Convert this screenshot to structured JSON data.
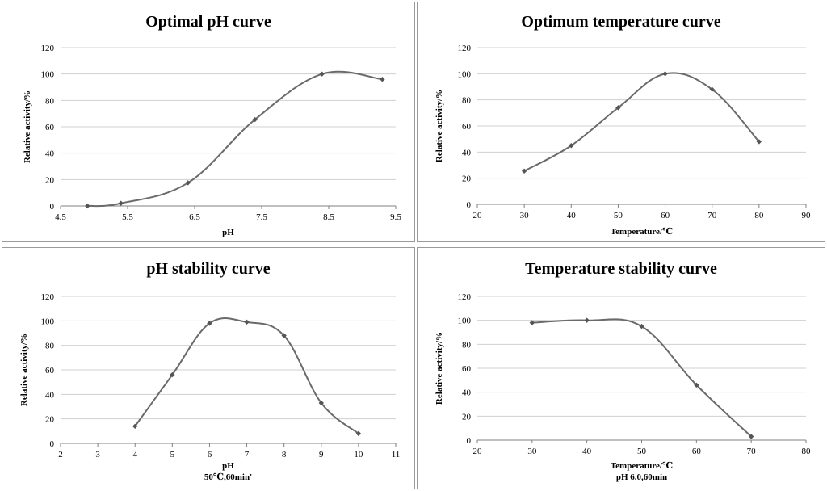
{
  "chart_data": [
    {
      "type": "line",
      "title": "Optimal pH curve",
      "xlabel": "pH",
      "ylabel": "Relative activity/%",
      "xlim": [
        4.5,
        9.5
      ],
      "ylim": [
        0,
        120
      ],
      "xticks": [
        "4.5",
        "5.5",
        "6.5",
        "7.5",
        "8.5",
        "9.5"
      ],
      "xtick_values": [
        4.5,
        5.5,
        6.5,
        7.5,
        8.5,
        9.5
      ],
      "yticks": [
        "0",
        "20",
        "40",
        "60",
        "80",
        "100",
        "120"
      ],
      "ytick_values": [
        0,
        20,
        40,
        60,
        80,
        100,
        120
      ],
      "x": [
        4.9,
        5.4,
        6.4,
        7.4,
        8.4,
        9.3
      ],
      "y": [
        0,
        2,
        17.5,
        65.5,
        100,
        96
      ],
      "grid": true
    },
    {
      "type": "line",
      "title": "Optimum temperature curve",
      "xlabel": "Temperature/℃",
      "ylabel": "Relative activity/%",
      "xlim": [
        20,
        90
      ],
      "ylim": [
        0,
        120
      ],
      "xticks": [
        "20",
        "30",
        "40",
        "50",
        "60",
        "70",
        "80",
        "90"
      ],
      "xtick_values": [
        20,
        30,
        40,
        50,
        60,
        70,
        80,
        90
      ],
      "yticks": [
        "0",
        "20",
        "40",
        "60",
        "80",
        "100",
        "120"
      ],
      "ytick_values": [
        0,
        20,
        40,
        60,
        80,
        100,
        120
      ],
      "x": [
        30,
        40,
        50,
        60,
        70,
        80
      ],
      "y": [
        25.5,
        45,
        74,
        100,
        88,
        48
      ],
      "grid": true
    },
    {
      "type": "line",
      "title": "pH stability curve",
      "xlabel": "pH",
      "xlabel2": "50℃,60min'",
      "ylabel": "Relative activity/%",
      "xlim": [
        2,
        11
      ],
      "ylim": [
        0,
        120
      ],
      "xticks": [
        "2",
        "3",
        "4",
        "5",
        "6",
        "7",
        "8",
        "9",
        "10",
        "11"
      ],
      "xtick_values": [
        2,
        3,
        4,
        5,
        6,
        7,
        8,
        9,
        10,
        11
      ],
      "yticks": [
        "0",
        "20",
        "40",
        "60",
        "80",
        "100",
        "120"
      ],
      "ytick_values": [
        0,
        20,
        40,
        60,
        80,
        100,
        120
      ],
      "x": [
        4,
        5,
        6,
        7,
        8,
        9,
        10
      ],
      "y": [
        14,
        56,
        98,
        99,
        88,
        33,
        8
      ],
      "grid": true
    },
    {
      "type": "line",
      "title": "Temperature stability curve",
      "xlabel": "Temperature/℃",
      "xlabel2": "pH 6.0,60min",
      "ylabel": "Relative activity/%",
      "xlim": [
        20,
        80
      ],
      "ylim": [
        0,
        120
      ],
      "xticks": [
        "20",
        "30",
        "40",
        "50",
        "60",
        "70",
        "80"
      ],
      "xtick_values": [
        20,
        30,
        40,
        50,
        60,
        70,
        80
      ],
      "yticks": [
        "0",
        "20",
        "40",
        "60",
        "80",
        "100",
        "120"
      ],
      "ytick_values": [
        0,
        20,
        40,
        60,
        80,
        100,
        120
      ],
      "x": [
        30,
        40,
        50,
        60,
        70
      ],
      "y": [
        98,
        100,
        95,
        46,
        3
      ],
      "grid": true
    }
  ]
}
